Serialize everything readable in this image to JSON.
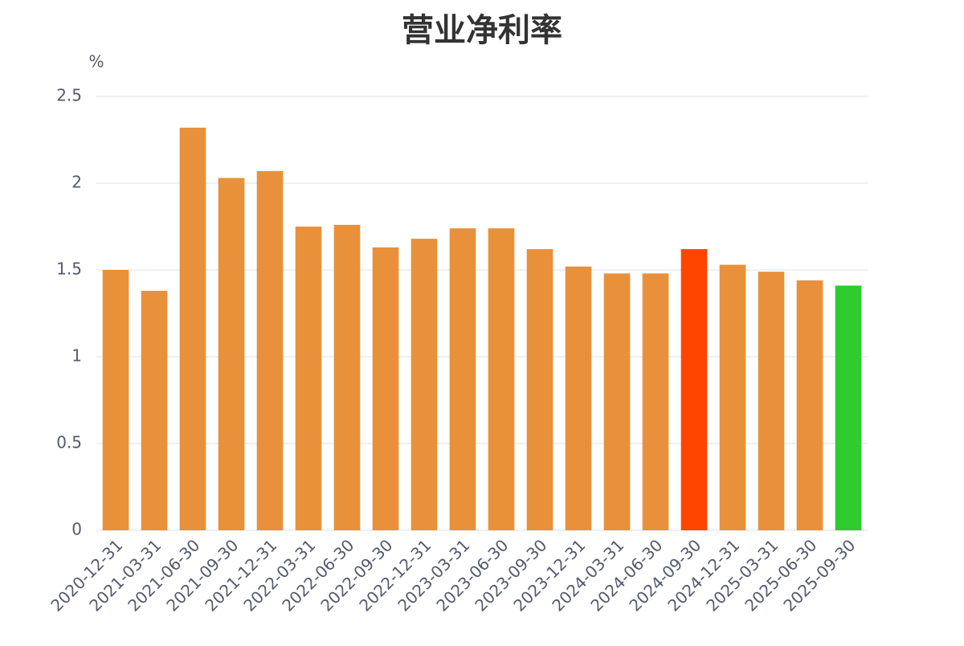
{
  "chart_data": {
    "type": "bar",
    "title": "营业净利率",
    "y_label": "%",
    "categories": [
      "2020-12-31",
      "2021-03-31",
      "2021-06-30",
      "2021-09-30",
      "2021-12-31",
      "2022-03-31",
      "2022-06-30",
      "2022-09-30",
      "2022-12-31",
      "2023-03-31",
      "2023-06-30",
      "2023-09-30",
      "2023-12-31",
      "2024-03-31",
      "2024-06-30",
      "2024-09-30",
      "2024-12-31",
      "2025-03-31",
      "2025-06-30",
      "2025-09-30"
    ],
    "values": [
      1.5,
      1.38,
      2.32,
      2.03,
      2.07,
      1.75,
      1.76,
      1.63,
      1.68,
      1.74,
      1.74,
      1.62,
      1.52,
      1.48,
      1.48,
      1.62,
      1.53,
      1.49,
      1.44,
      1.41
    ],
    "colors": [
      "#e8913a",
      "#e8913a",
      "#e8913a",
      "#e8913a",
      "#e8913a",
      "#e8913a",
      "#e8913a",
      "#e8913a",
      "#e8913a",
      "#e8913a",
      "#e8913a",
      "#e8913a",
      "#e8913a",
      "#e8913a",
      "#e8913a",
      "#ff4500",
      "#e8913a",
      "#e8913a",
      "#e8913a",
      "#2ecc2e"
    ],
    "ylim": [
      0,
      2.5
    ],
    "yticks": [
      0,
      0.5,
      1,
      1.5,
      2,
      2.5
    ],
    "grid": true
  }
}
